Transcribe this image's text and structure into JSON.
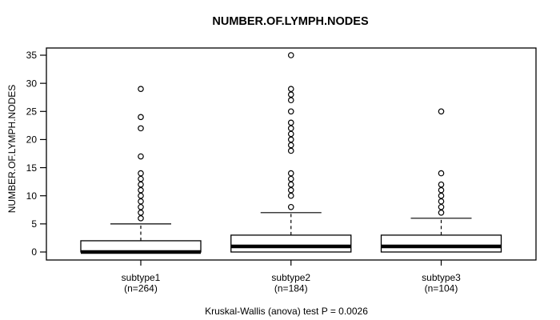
{
  "chart_data": {
    "type": "boxplot",
    "title": "NUMBER.OF.LYMPH.NODES",
    "ylabel": "NUMBER.OF.LYMPH.NODES",
    "xlabel": "",
    "caption": "Kruskal-Wallis (anova) test P = 0.0026",
    "ylim": [
      0,
      35
    ],
    "yticks": [
      0,
      5,
      10,
      15,
      20,
      25,
      30,
      35
    ],
    "grid": false,
    "legend": "none",
    "colors": {
      "stroke": "#000000",
      "box_fill": "#ffffff",
      "background": "#ffffff"
    },
    "groups": [
      {
        "label": "subtype1",
        "sublabel": "(n=264)",
        "q1": 0,
        "median": 0,
        "q3": 2,
        "whisker_low": 0,
        "whisker_high": 5,
        "outliers": [
          6,
          7,
          8,
          9,
          10,
          11,
          12,
          13,
          14,
          17,
          22,
          24,
          29
        ]
      },
      {
        "label": "subtype2",
        "sublabel": "(n=184)",
        "q1": 0,
        "median": 1,
        "q3": 3,
        "whisker_low": 0,
        "whisker_high": 7,
        "outliers": [
          8,
          10,
          11,
          12,
          13,
          14,
          18,
          19,
          20,
          21,
          22,
          23,
          25,
          27,
          28,
          29,
          35
        ]
      },
      {
        "label": "subtype3",
        "sublabel": "(n=104)",
        "q1": 0,
        "median": 1,
        "q3": 3,
        "whisker_low": 0,
        "whisker_high": 6,
        "outliers": [
          7,
          8,
          9,
          10,
          11,
          12,
          14,
          25
        ]
      }
    ]
  }
}
